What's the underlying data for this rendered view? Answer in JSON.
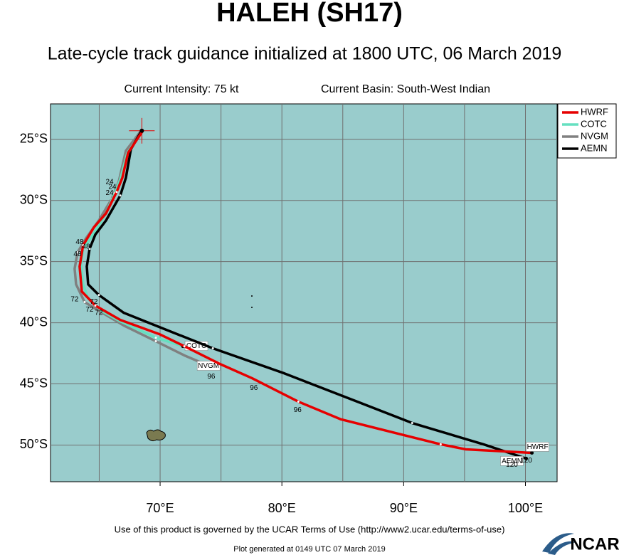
{
  "chart_data": {
    "type": "track-map",
    "title": "HALEH (SH17)",
    "subtitle": "Late-cycle track guidance initialized at 1800 UTC, 06 March 2019",
    "info_left": "Current Intensity: 75 kt",
    "info_right": "Current Basin: South-West Indian",
    "footer": "Use of this product is governed by the UCAR Terms of Use (http://www2.ucar.edu/terms-of-use)",
    "generated": "Plot generated at 0149 UTC   07 March 2019",
    "logo": "NCAR",
    "xlim": [
      61,
      102.6
    ],
    "ylim": [
      -53,
      -22.1
    ],
    "xticks": [
      {
        "value": 70,
        "label": "70°E"
      },
      {
        "value": 80,
        "label": "80°E"
      },
      {
        "value": 90,
        "label": "90°E"
      },
      {
        "value": 100,
        "label": "100°E"
      }
    ],
    "xgrid": [
      65,
      70,
      75,
      80,
      85,
      90,
      95,
      100
    ],
    "yticks": [
      {
        "value": -25,
        "label": "25°S"
      },
      {
        "value": -30,
        "label": "30°S"
      },
      {
        "value": -35,
        "label": "35°S"
      },
      {
        "value": -40,
        "label": "40°S"
      },
      {
        "value": -45,
        "label": "45°S"
      },
      {
        "value": -50,
        "label": "50°S"
      }
    ],
    "grid": true,
    "legend": "outside-top-right",
    "current_position": {
      "lon": 68.5,
      "lat": -24.3
    },
    "series": [
      {
        "name": "HWRF",
        "color": "#e60000",
        "lon": [
          68.54,
          67.37,
          66.9,
          66.43,
          65.56,
          64.56,
          63.68,
          63.39,
          63.57,
          64.68,
          66.73,
          69.94,
          71.99,
          74.91,
          77.54,
          81.35,
          84.85,
          89.53,
          93.04,
          95.09,
          100.53
        ],
        "lat": [
          -24.36,
          -26.1,
          -28.14,
          -29.3,
          -31.05,
          -32.2,
          -33.66,
          -35.4,
          -37.44,
          -38.6,
          -39.77,
          -40.93,
          -41.92,
          -43.37,
          -44.53,
          -46.45,
          -47.9,
          -49.07,
          -49.94,
          -50.35,
          -50.64
        ]
      },
      {
        "name": "COTC",
        "color": "#66e0c0",
        "lon": [
          68.54,
          67.31,
          66.73,
          66.26,
          65.56,
          64.68,
          63.68,
          63.51,
          63.68,
          64.09,
          65.26,
          66.73,
          69.65,
          71.87
        ],
        "lat": [
          -24.36,
          -26.1,
          -28.26,
          -29.42,
          -31.05,
          -32.5,
          -33.95,
          -35.23,
          -36.86,
          -38.02,
          -39.07,
          -39.88,
          -41.22,
          -41.92
        ]
      },
      {
        "name": "NVGM",
        "color": "#808080",
        "lon": [
          68.48,
          67.19,
          66.61,
          66.02,
          64.97,
          63.92,
          63.22,
          62.98,
          63.1,
          63.8,
          65.26,
          67.02,
          69.65,
          71.99,
          74.33
        ],
        "lat": [
          -24.24,
          -25.93,
          -28.43,
          -29.88,
          -31.63,
          -33.08,
          -34.24,
          -35.58,
          -36.86,
          -38.31,
          -39.19,
          -40.23,
          -41.51,
          -42.67,
          -43.66
        ]
      },
      {
        "name": "AEMN",
        "color": "#000000",
        "lon": [
          68.54,
          67.6,
          67.19,
          66.73,
          65.56,
          64.68,
          64.21,
          63.98,
          64.09,
          64.97,
          67.02,
          69.94,
          74.33,
          80.18,
          85.44,
          90.7,
          96.55,
          100.06
        ],
        "lat": [
          -24.19,
          -25.81,
          -28.14,
          -29.59,
          -31.63,
          -32.79,
          -33.95,
          -35.4,
          -36.86,
          -37.73,
          -39.19,
          -40.35,
          -42.09,
          -44.13,
          -46.16,
          -48.2,
          -49.94,
          -51.1
        ]
      }
    ],
    "hour_labels": [
      {
        "label": "24",
        "lon": 65.85,
        "lat": -28.5
      },
      {
        "label": "24",
        "lon": 66.08,
        "lat": -28.9
      },
      {
        "label": "24",
        "lon": 65.85,
        "lat": -29.4
      },
      {
        "label": "48",
        "lon": 63.39,
        "lat": -33.4
      },
      {
        "label": "48",
        "lon": 63.92,
        "lat": -33.8
      },
      {
        "label": "48",
        "lon": 63.22,
        "lat": -34.4
      },
      {
        "label": "72",
        "lon": 62.98,
        "lat": -38.1
      },
      {
        "label": "72",
        "lon": 64.56,
        "lat": -38.3
      },
      {
        "label": "72",
        "lon": 64.21,
        "lat": -38.95
      },
      {
        "label": "72",
        "lon": 64.97,
        "lat": -39.19
      },
      {
        "label": "96",
        "lon": 74.2,
        "lat": -44.4
      },
      {
        "label": "96",
        "lon": 77.7,
        "lat": -45.35
      },
      {
        "label": "96",
        "lon": 81.29,
        "lat": -47.15
      },
      {
        "label": "120",
        "lon": 98.89,
        "lat": -51.63
      },
      {
        "label": "120",
        "lon": 100.06,
        "lat": -51.28
      }
    ]
  }
}
